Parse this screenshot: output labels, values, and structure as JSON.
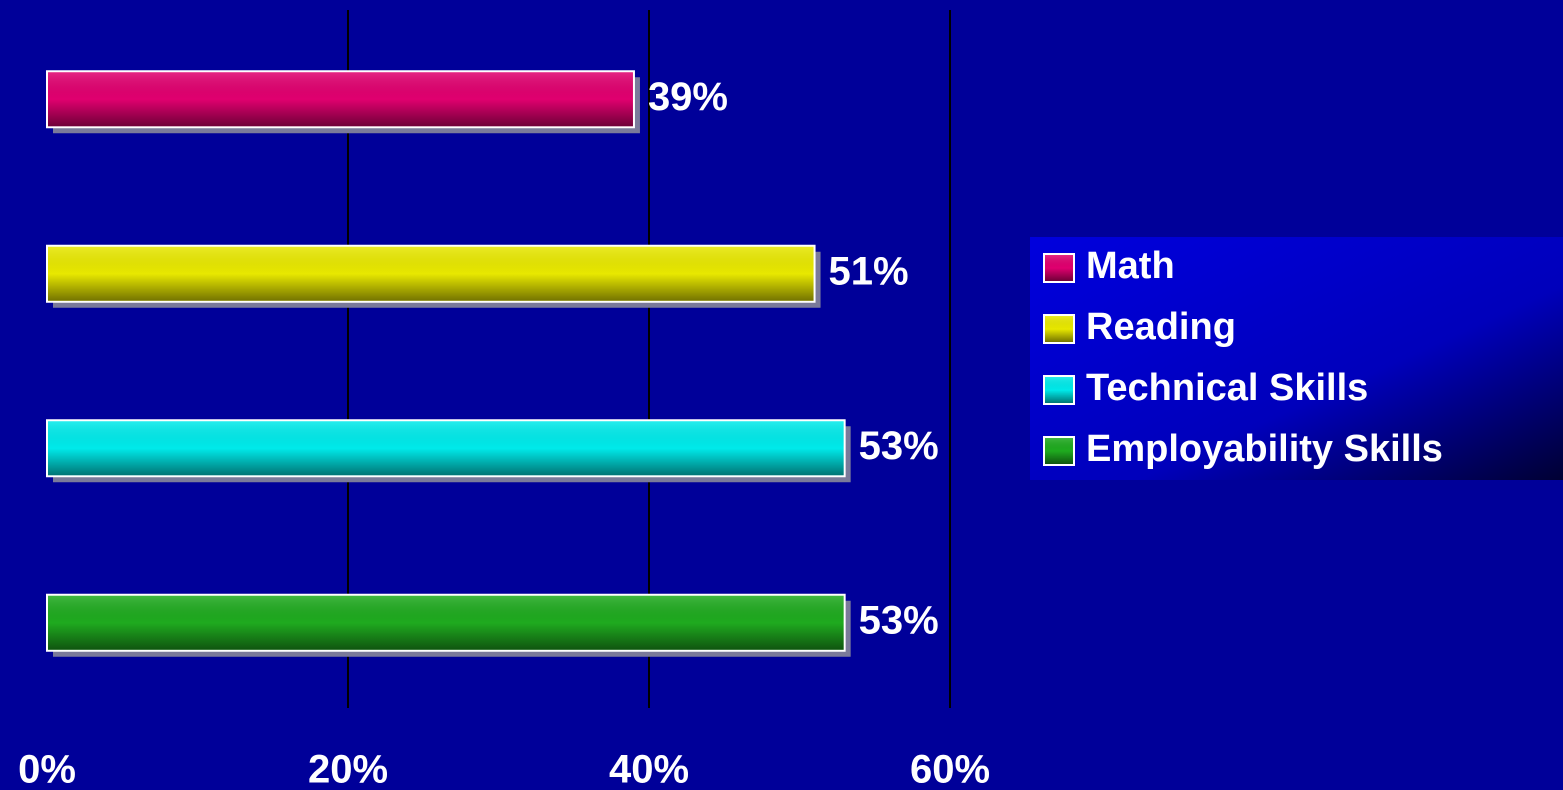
{
  "chart_data": {
    "type": "bar",
    "orientation": "horizontal",
    "series": [
      {
        "name": "Math",
        "color": "#e0006f",
        "values": [
          39
        ],
        "value_labels": [
          "39%"
        ]
      },
      {
        "name": "Reading",
        "color": "#e8e800",
        "values": [
          51
        ],
        "value_labels": [
          "51%"
        ]
      },
      {
        "name": "Technical Skills",
        "color": "#00eaea",
        "values": [
          53
        ],
        "value_labels": [
          "53%"
        ]
      },
      {
        "name": "Employability Skills",
        "color": "#1faa1f",
        "values": [
          53
        ],
        "value_labels": [
          "53%"
        ]
      }
    ],
    "xlim": [
      0,
      60
    ],
    "xticks": [
      {
        "value": 0,
        "label": "0%"
      },
      {
        "value": 20,
        "label": "20%"
      },
      {
        "value": 40,
        "label": "40%"
      },
      {
        "value": 60,
        "label": "60%"
      }
    ],
    "grid": true,
    "legend": "right"
  }
}
